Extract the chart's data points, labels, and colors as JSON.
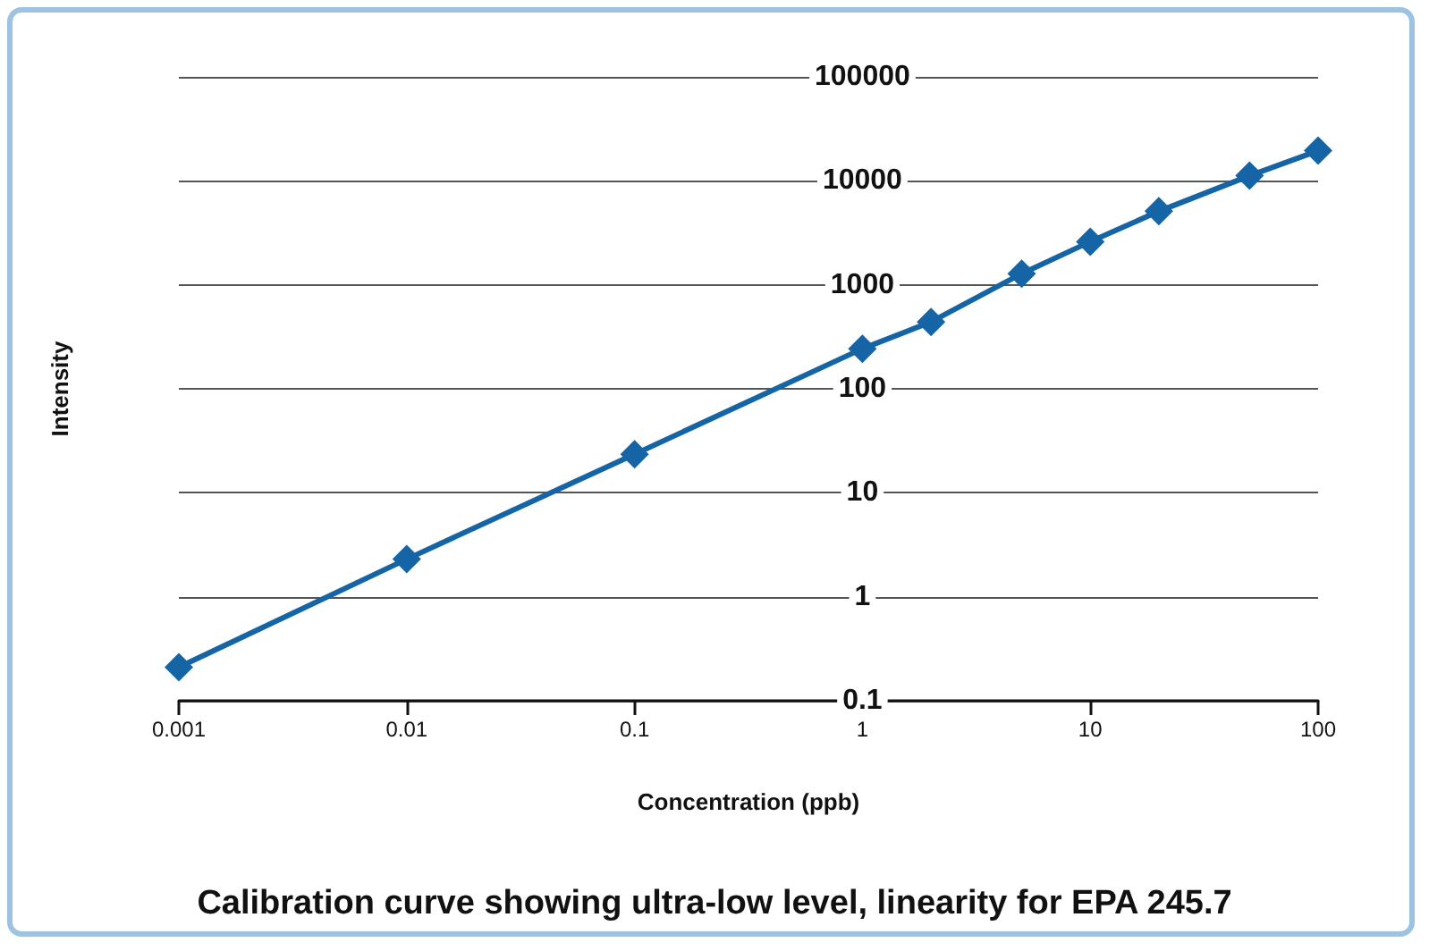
{
  "chart_data": {
    "type": "line",
    "title": "Calibration curve showing ultra-low level, linearity for EPA 245.7",
    "xlabel": "Concentration (ppb)",
    "ylabel": "Intensity",
    "x": [
      0.001,
      0.01,
      0.1,
      1,
      2,
      5,
      10,
      20,
      50,
      100
    ],
    "series": [
      {
        "color": "#1565a6",
        "values": [
          0.21,
          2.3,
          23.5,
          243,
          440,
          1280,
          2600,
          5100,
          11200,
          19500
        ]
      }
    ],
    "xlim": [
      0.001,
      100
    ],
    "xticks": [
      0.001,
      0.01,
      0.1,
      1,
      10,
      100
    ],
    "ylim": [
      0.1,
      100000
    ],
    "yticks": [
      0.1,
      1,
      10,
      100,
      1000,
      10000,
      100000
    ],
    "log": "xy",
    "grid": "y",
    "marker": "diamond",
    "line_style": "solid"
  }
}
